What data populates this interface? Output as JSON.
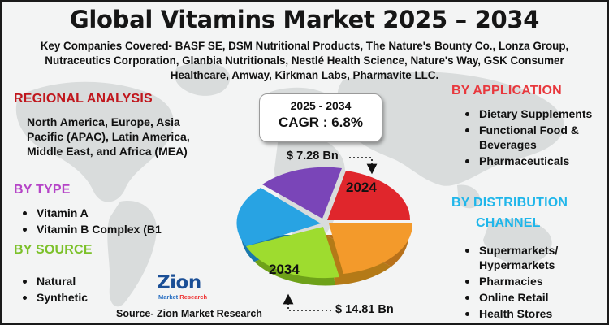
{
  "title": "Global Vitamins Market 2025 – 2034",
  "companies": "Key Companies Covered- BASF SE, DSM Nutritional Products, The Nature's Bounty Co., Lonza Group, Nutraceutics Corporation, Glanbia Nutritionals, Nestlé Health Science, Nature's Way, GSK Consumer Healthcare, Amway, Kirkman Labs, Pharmavite LLC.",
  "regional": {
    "heading": "REGIONAL ANALYSIS",
    "text": "North America, Europe, Asia Pacific (APAC), Latin America, Middle East, and Africa (MEA)",
    "color": "#c0161c"
  },
  "by_type": {
    "heading": "BY TYPE",
    "items": [
      "Vitamin A",
      "Vitamin B Complex (B1"
    ],
    "color": "#b544c7"
  },
  "by_source": {
    "heading": "BY SOURCE",
    "items": [
      "Natural",
      "Synthetic"
    ],
    "color": "#7cc12a"
  },
  "by_application": {
    "heading": "BY APPLICATION",
    "items": [
      "Dietary Supplements",
      "Functional Food & Beverages",
      "Pharmaceuticals"
    ],
    "color": "#e8383d"
  },
  "by_distribution": {
    "heading_line1": "BY DISTRIBUTION",
    "heading_line2": "CHANNEL",
    "items": [
      "Supermarkets/ Hypermarkets",
      "Pharmacies",
      "Online Retail",
      "Health Stores"
    ],
    "color": "#1fb6ea"
  },
  "cagr": {
    "period": "2025 - 2034",
    "value": "CAGR : 6.8%"
  },
  "pie": {
    "label_2024": "2024",
    "label_2034": "2034",
    "value_2024": "$ 7.28 Bn",
    "value_2034": "$ 14.81 Bn",
    "slice_colors": [
      "#e0262c",
      "#f39a2b",
      "#9edc2f",
      "#28a3e3",
      "#7a45b8"
    ]
  },
  "source": "Source- Zion Market Research",
  "logo": {
    "name": "Zion",
    "tagline_1": "Market",
    "tagline_2": "Research"
  }
}
